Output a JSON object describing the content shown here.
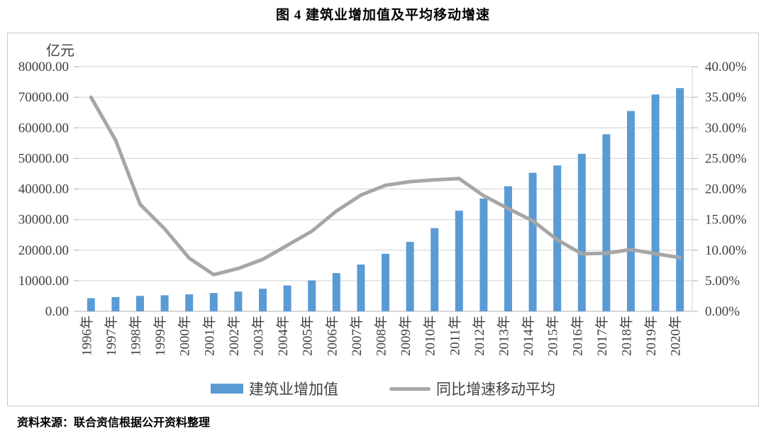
{
  "title": "图 4  建筑业增加值及平均移动增速",
  "source_note": "资料来源：联合资信根据公开资料整理",
  "legend": {
    "bar_label": "建筑业增加值",
    "line_label": "同比增速移动平均"
  },
  "colors": {
    "bar": "#5b9bd5",
    "line": "#a6a6a6",
    "gridline": "#d9d9d9",
    "axis_line": "#bfbfbf",
    "tick_text": "#404040"
  },
  "chart_data": {
    "type": "combo",
    "categories": [
      "1996年",
      "1997年",
      "1998年",
      "1999年",
      "2000年",
      "2001年",
      "2002年",
      "2003年",
      "2004年",
      "2005年",
      "2006年",
      "2007年",
      "2008年",
      "2009年",
      "2010年",
      "2011年",
      "2012年",
      "2013年",
      "2014年",
      "2015年",
      "2016年",
      "2017年",
      "2018年",
      "2019年",
      "2020年"
    ],
    "series": [
      {
        "name": "建筑业增加值",
        "type": "bar",
        "axis": "left",
        "color": "#5b9bd5",
        "values": [
          4300,
          4650,
          5050,
          5250,
          5550,
          6000,
          6450,
          7400,
          8450,
          10100,
          12500,
          15300,
          18800,
          22700,
          27200,
          32900,
          36900,
          40900,
          45300,
          47700,
          51500,
          57900,
          65500,
          70900,
          73000
        ]
      },
      {
        "name": "同比增速移动平均",
        "type": "line",
        "axis": "right",
        "color": "#a6a6a6",
        "values": [
          35.0,
          28.0,
          17.5,
          13.5,
          8.7,
          6.0,
          7.0,
          8.5,
          10.8,
          13.1,
          16.4,
          19.0,
          20.6,
          21.2,
          21.5,
          21.7,
          18.9,
          16.8,
          14.8,
          11.7,
          9.4,
          9.5,
          10.1,
          9.4,
          8.8
        ]
      }
    ],
    "left_axis": {
      "title": "亿元",
      "min": 0,
      "max": 80000,
      "step": 10000,
      "tick_suffix": ""
    },
    "right_axis": {
      "title": "",
      "min": 0,
      "max": 40,
      "step": 5,
      "tick_suffix": "%"
    },
    "grid": true,
    "legend_position": "bottom"
  }
}
